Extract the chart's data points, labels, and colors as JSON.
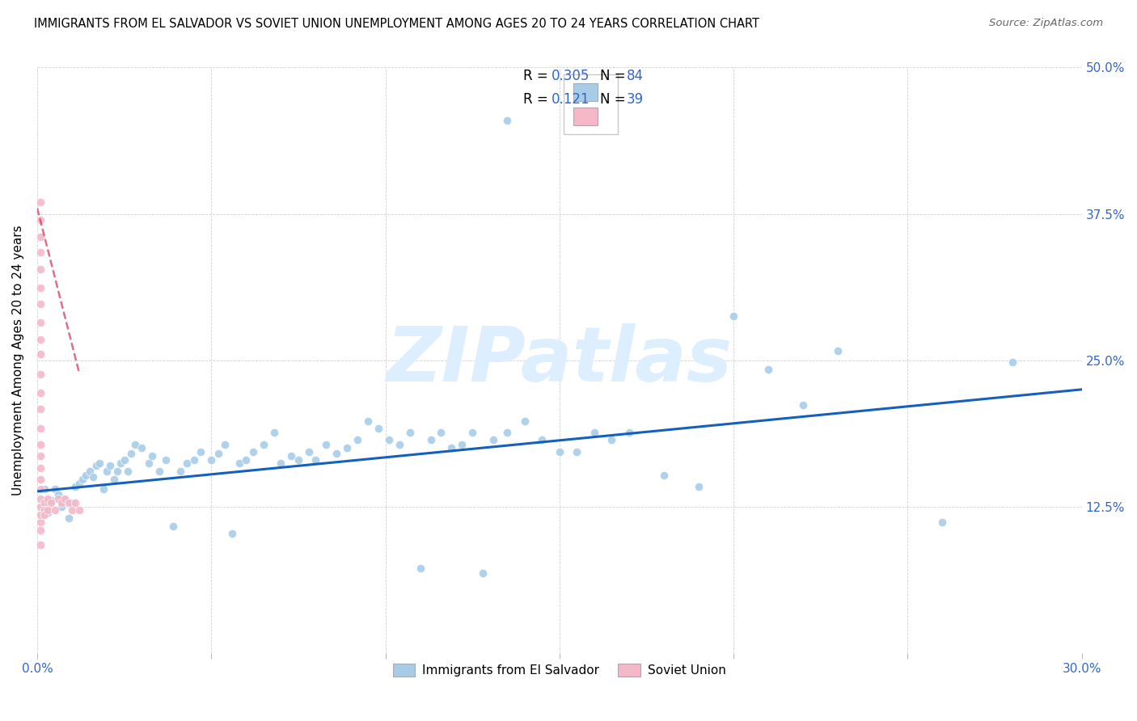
{
  "title": "IMMIGRANTS FROM EL SALVADOR VS SOVIET UNION UNEMPLOYMENT AMONG AGES 20 TO 24 YEARS CORRELATION CHART",
  "source": "Source: ZipAtlas.com",
  "ylabel": "Unemployment Among Ages 20 to 24 years",
  "xlim": [
    0.0,
    0.3
  ],
  "ylim": [
    0.0,
    0.5
  ],
  "xticks": [
    0.0,
    0.05,
    0.1,
    0.15,
    0.2,
    0.25,
    0.3
  ],
  "xtick_labels": [
    "0.0%",
    "",
    "",
    "",
    "",
    "",
    "30.0%"
  ],
  "yticks": [
    0.0,
    0.125,
    0.25,
    0.375,
    0.5
  ],
  "ytick_labels": [
    "",
    "12.5%",
    "25.0%",
    "37.5%",
    "50.0%"
  ],
  "color_blue": "#a8cce8",
  "color_pink": "#f4b8c8",
  "color_trendline_blue": "#1560bd",
  "color_trendline_pink": "#cc3355",
  "color_axis_text": "#3366cc",
  "watermark": "ZIPatlas",
  "watermark_color": "#ddeeff",
  "el_salvador_x": [
    0.002,
    0.003,
    0.004,
    0.005,
    0.006,
    0.007,
    0.008,
    0.009,
    0.01,
    0.011,
    0.012,
    0.013,
    0.014,
    0.015,
    0.016,
    0.017,
    0.018,
    0.019,
    0.02,
    0.021,
    0.022,
    0.023,
    0.024,
    0.025,
    0.026,
    0.027,
    0.028,
    0.03,
    0.032,
    0.033,
    0.035,
    0.037,
    0.039,
    0.041,
    0.043,
    0.045,
    0.047,
    0.05,
    0.052,
    0.054,
    0.056,
    0.058,
    0.06,
    0.062,
    0.065,
    0.068,
    0.07,
    0.073,
    0.075,
    0.078,
    0.08,
    0.083,
    0.086,
    0.089,
    0.092,
    0.095,
    0.098,
    0.101,
    0.104,
    0.107,
    0.11,
    0.113,
    0.116,
    0.119,
    0.122,
    0.125,
    0.128,
    0.131,
    0.135,
    0.14,
    0.145,
    0.15,
    0.155,
    0.16,
    0.165,
    0.17,
    0.18,
    0.19,
    0.2,
    0.21,
    0.22,
    0.23,
    0.26,
    0.28,
    0.135
  ],
  "el_salvador_y": [
    0.14,
    0.12,
    0.13,
    0.14,
    0.135,
    0.125,
    0.13,
    0.115,
    0.128,
    0.142,
    0.145,
    0.148,
    0.152,
    0.155,
    0.15,
    0.16,
    0.162,
    0.14,
    0.155,
    0.16,
    0.148,
    0.155,
    0.162,
    0.165,
    0.155,
    0.17,
    0.178,
    0.175,
    0.162,
    0.168,
    0.155,
    0.165,
    0.108,
    0.155,
    0.162,
    0.165,
    0.172,
    0.165,
    0.17,
    0.178,
    0.102,
    0.162,
    0.165,
    0.172,
    0.178,
    0.188,
    0.162,
    0.168,
    0.165,
    0.172,
    0.165,
    0.178,
    0.17,
    0.175,
    0.182,
    0.198,
    0.192,
    0.182,
    0.178,
    0.188,
    0.072,
    0.182,
    0.188,
    0.175,
    0.178,
    0.188,
    0.068,
    0.182,
    0.188,
    0.198,
    0.182,
    0.172,
    0.172,
    0.188,
    0.182,
    0.188,
    0.152,
    0.142,
    0.288,
    0.242,
    0.212,
    0.258,
    0.112,
    0.248,
    0.455
  ],
  "soviet_x": [
    0.001,
    0.001,
    0.001,
    0.001,
    0.001,
    0.001,
    0.001,
    0.001,
    0.001,
    0.001,
    0.001,
    0.001,
    0.001,
    0.001,
    0.001,
    0.001,
    0.001,
    0.001,
    0.001,
    0.001,
    0.001,
    0.001,
    0.001,
    0.001,
    0.001,
    0.002,
    0.002,
    0.002,
    0.003,
    0.003,
    0.004,
    0.005,
    0.006,
    0.007,
    0.008,
    0.009,
    0.01,
    0.011,
    0.012
  ],
  "soviet_y": [
    0.092,
    0.105,
    0.112,
    0.118,
    0.125,
    0.132,
    0.14,
    0.148,
    0.158,
    0.168,
    0.178,
    0.192,
    0.208,
    0.222,
    0.238,
    0.255,
    0.268,
    0.282,
    0.298,
    0.312,
    0.328,
    0.342,
    0.355,
    0.37,
    0.385,
    0.128,
    0.122,
    0.118,
    0.132,
    0.122,
    0.128,
    0.122,
    0.132,
    0.128,
    0.132,
    0.128,
    0.122,
    0.128,
    0.122
  ],
  "trendline_blue_x0": 0.0,
  "trendline_blue_y0": 0.138,
  "trendline_blue_x1": 0.3,
  "trendline_blue_y1": 0.225,
  "trendline_pink_x0": 0.0,
  "trendline_pink_y0": 0.38,
  "trendline_pink_x1": 0.012,
  "trendline_pink_y1": 0.24
}
